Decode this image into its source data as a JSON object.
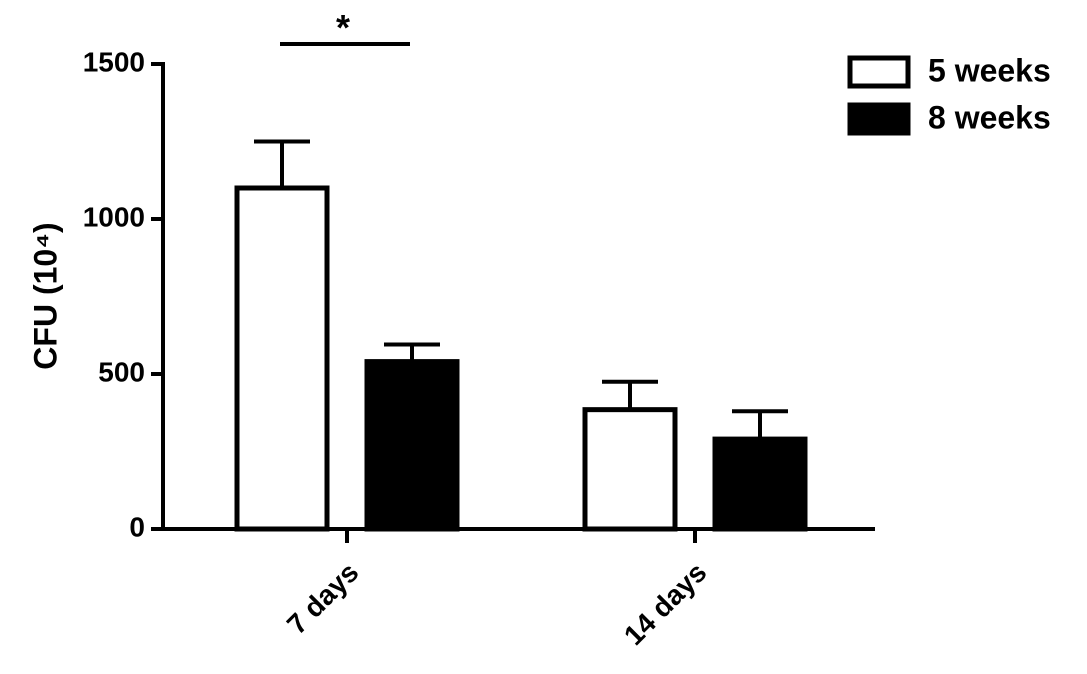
{
  "chart_data": {
    "type": "bar",
    "y_label": "CFU (10⁴)",
    "categories": [
      "7 days",
      "14 days"
    ],
    "series": [
      {
        "name": "5 weeks",
        "color": "#ffffff",
        "values": [
          1100,
          385
        ],
        "errors": [
          150,
          90
        ]
      },
      {
        "name": "8 weeks",
        "color": "#000000",
        "values": [
          540,
          290
        ],
        "errors": [
          55,
          90
        ]
      }
    ],
    "ylim": [
      0,
      1500
    ],
    "yticks": [
      0,
      500,
      1000,
      1500
    ],
    "annotation": "*",
    "legend": "top-right"
  }
}
